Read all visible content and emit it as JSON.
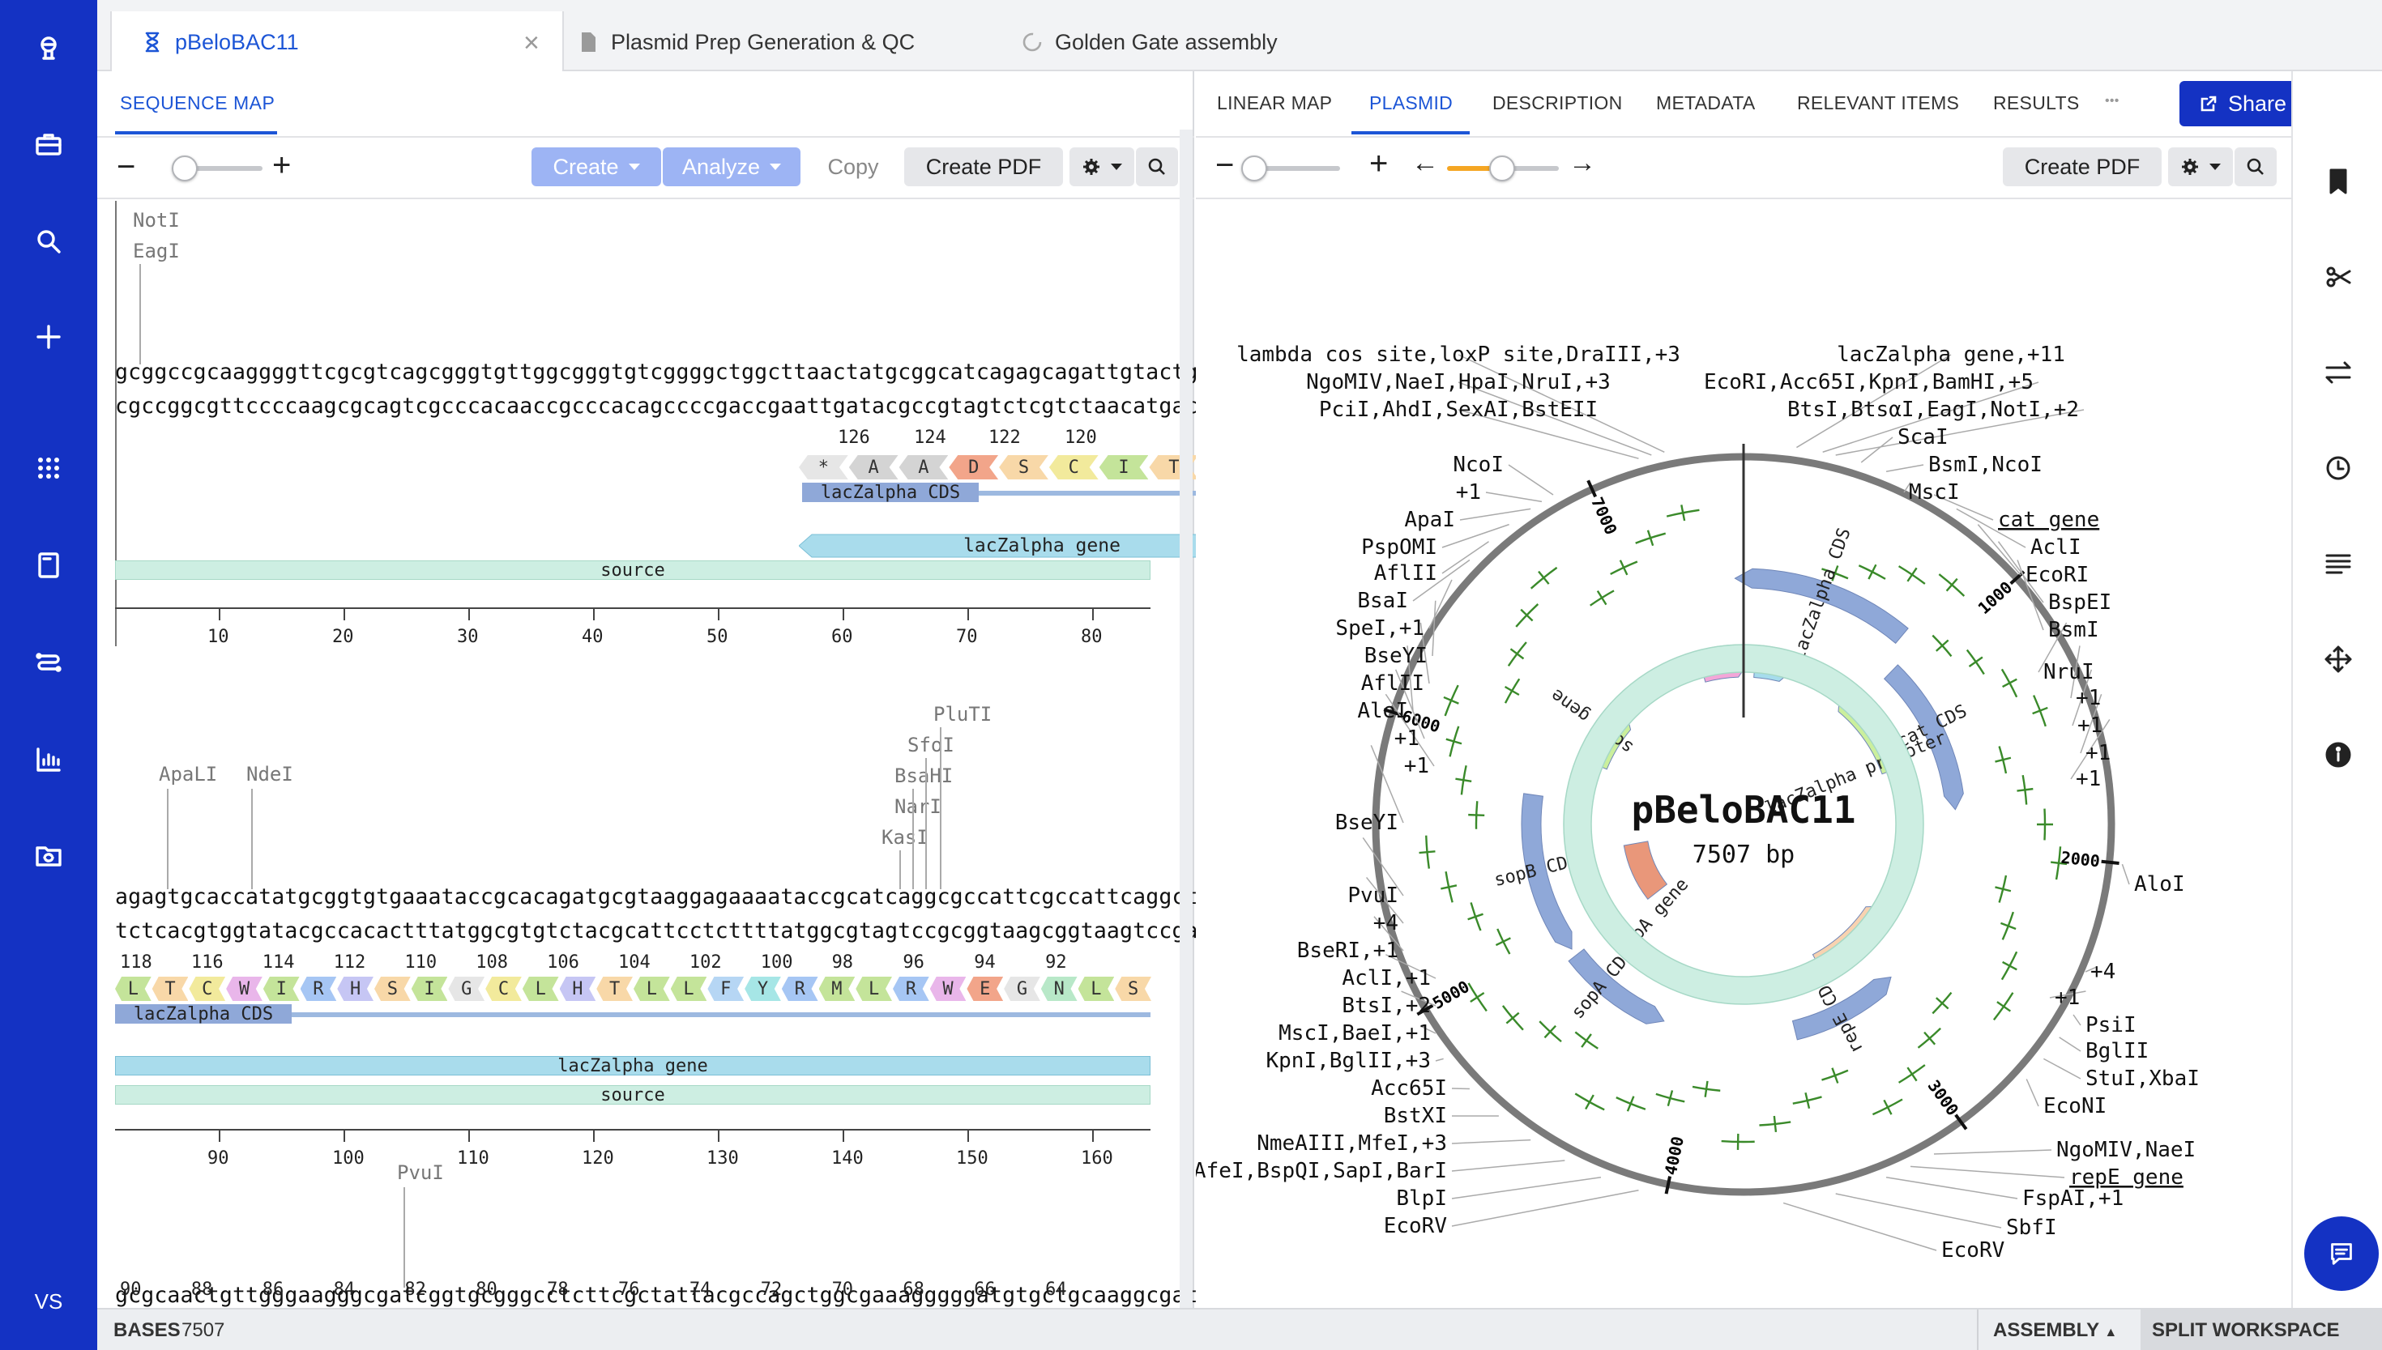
{
  "sidebar": {
    "icons": [
      "app-logo-icon",
      "briefcase-icon",
      "search-icon",
      "plus-icon",
      "grid-icon",
      "notebook-icon",
      "workflow-icon",
      "chart-icon",
      "folder-sync-icon"
    ],
    "avatar_initials": "VS"
  },
  "tabs": [
    {
      "label": "pBeloBAC11",
      "icon": "hourglass-icon"
    },
    {
      "label": "Plasmid Prep Generation & QC",
      "icon": "document-icon"
    },
    {
      "label": "Golden Gate assembly",
      "icon": "spinner-icon"
    }
  ],
  "left_pane": {
    "subtab": "SEQUENCE MAP",
    "toolbar": {
      "create": "Create",
      "analyze": "Analyze",
      "copy": "Copy",
      "create_pdf": "Create PDF",
      "zoom_minus": "−",
      "zoom_plus": "+"
    },
    "rows": [
      {
        "enzymes": [
          "NotI",
          "EagI"
        ],
        "seq_top": "gcggccgcaaggggttcgcgtcagcgggtgttggcgggtgtcggggctggcttaactatgcggcatcagagcagattgtactg",
        "seq_bottom": "cgccggcgttccccaagcgcagtcgcccacaaccgcccacagccccgaccgaattgatacgccgtagtctcgtctaacatgac",
        "aa_numbers": [
          "126",
          "124",
          "122",
          "120"
        ],
        "aa": [
          "*",
          "A",
          "A",
          "D",
          "S",
          "C",
          "I",
          "T",
          "S"
        ],
        "features": [
          "lacZalpha CDS",
          "lacZalpha gene",
          "source"
        ],
        "ruler": [
          "10",
          "20",
          "30",
          "40",
          "50",
          "60",
          "70",
          "80"
        ]
      },
      {
        "enzymes": [
          "ApaLI",
          "NdeI",
          "PluTI",
          "SfoI",
          "BsaHI",
          "NarI",
          "KasI"
        ],
        "seq_top": "agagtgcaccatatgcggtgtgaaataccgcacagatgcgtaaggagaaaataccgcatcaggcgccattcgccattcaggct",
        "seq_bottom": "tctcacgtggtatacgccacactttatggcgtgtctacgcattcctcttttatggcgtagtccgcggtaagcggtaagtccga",
        "aa_numbers": [
          "118",
          "116",
          "114",
          "112",
          "110",
          "108",
          "106",
          "104",
          "102",
          "100",
          "98",
          "96",
          "94",
          "92"
        ],
        "aa": [
          "L",
          "T",
          "C",
          "W",
          "I",
          "R",
          "H",
          "S",
          "I",
          "G",
          "C",
          "L",
          "H",
          "T",
          "L",
          "L",
          "F",
          "Y",
          "R",
          "M",
          "L",
          "R",
          "W",
          "E",
          "G",
          "N",
          "L",
          "S"
        ],
        "features": [
          "lacZalpha CDS",
          "lacZalpha gene",
          "source"
        ],
        "ruler": [
          "90",
          "100",
          "110",
          "120",
          "130",
          "140",
          "150",
          "160"
        ]
      },
      {
        "enzymes": [
          "PvuI"
        ],
        "seq_top": "gcgcaactgttgggaagggcgatcggtgcgggcctcttcgctattacgccagctggcgaaagggggatgtgctgcaaggcgat",
        "seq_bottom": "cgcgttgacaacccttcccgctagccacgcccggagaagcgataatgcggtcgaccgctttccccctacacgacgttccgcta",
        "aa_numbers": [
          "90",
          "88",
          "86",
          "84",
          "82",
          "80",
          "78",
          "76",
          "74",
          "72",
          "70",
          "68",
          "66",
          "64"
        ]
      }
    ]
  },
  "right_pane": {
    "tabs": [
      "LINEAR MAP",
      "PLASMID",
      "DESCRIPTION",
      "METADATA",
      "RELEVANT ITEMS",
      "RESULTS"
    ],
    "active_tab": "PLASMID",
    "more": "•••",
    "share": "Share",
    "create_pdf": "Create PDF",
    "plasmid": {
      "name": "pBeloBAC11",
      "size": "7507 bp",
      "ring_ticks": [
        "1000",
        "2000",
        "3000",
        "4000",
        "5000",
        "6000",
        "7000"
      ],
      "features": [
        "lacZalpha CDS",
        "cat CDS",
        "lacZalpha promoter",
        "sopB gene",
        "sopB CDS",
        "sopA gene",
        "sopA CDS",
        "source",
        "repE CDS"
      ],
      "labels_left": [
        "NgoMIV,NaeI,HpaI,NruI,+3",
        "PciI,AhdI,SexAI,BstEII",
        "NcoI",
        "+1",
        "ApaI",
        "PspOMI",
        "AflII",
        "BsaI",
        "SpeI,+1",
        "BseYI",
        "AflII",
        "AleI",
        "+1",
        "+1",
        "BseYI",
        "PvuI",
        "+4",
        "BseRI,+1",
        "AclI,+1",
        "BtsI,+2",
        "MscI,BaeI,+1",
        "KpnI,BglII,+3",
        "Acc65I",
        "BstXI",
        "NmeAIII,MfeI,+3",
        "AfeI,BspQI,SapI,BarI",
        "BlpI",
        "EcoRV"
      ],
      "labels_top_left": [
        "lambda_cos_site",
        "loxP_site",
        "DraIII,+3"
      ],
      "labels_top_right": [
        "lacZalpha_gene",
        "+11"
      ],
      "labels_right": [
        "EcoRI,Acc65I,KpnI,BamHI,+5",
        "BtsI,BtsαI,EagI,NotI,+2",
        "ScaI",
        "BsmI,NcoI",
        "MscI",
        "cat_gene",
        "AclI",
        "EcoRI",
        "BspEI",
        "BsmI",
        "NruI",
        "+1",
        "+1",
        "+1",
        "+1",
        "AloI",
        "+4",
        "+1",
        "PsiI",
        "BglII",
        "StuI,XbaI",
        "EcoNI",
        "NgoMIV,NaeI",
        "repE_gene",
        "FspAI,+1",
        "SbfI",
        "EcoRV"
      ]
    }
  },
  "status": {
    "bases_label": "BASES",
    "bases_value": "7507",
    "assembly": "ASSEMBLY",
    "split": "SPLIT WORKSPACE"
  }
}
